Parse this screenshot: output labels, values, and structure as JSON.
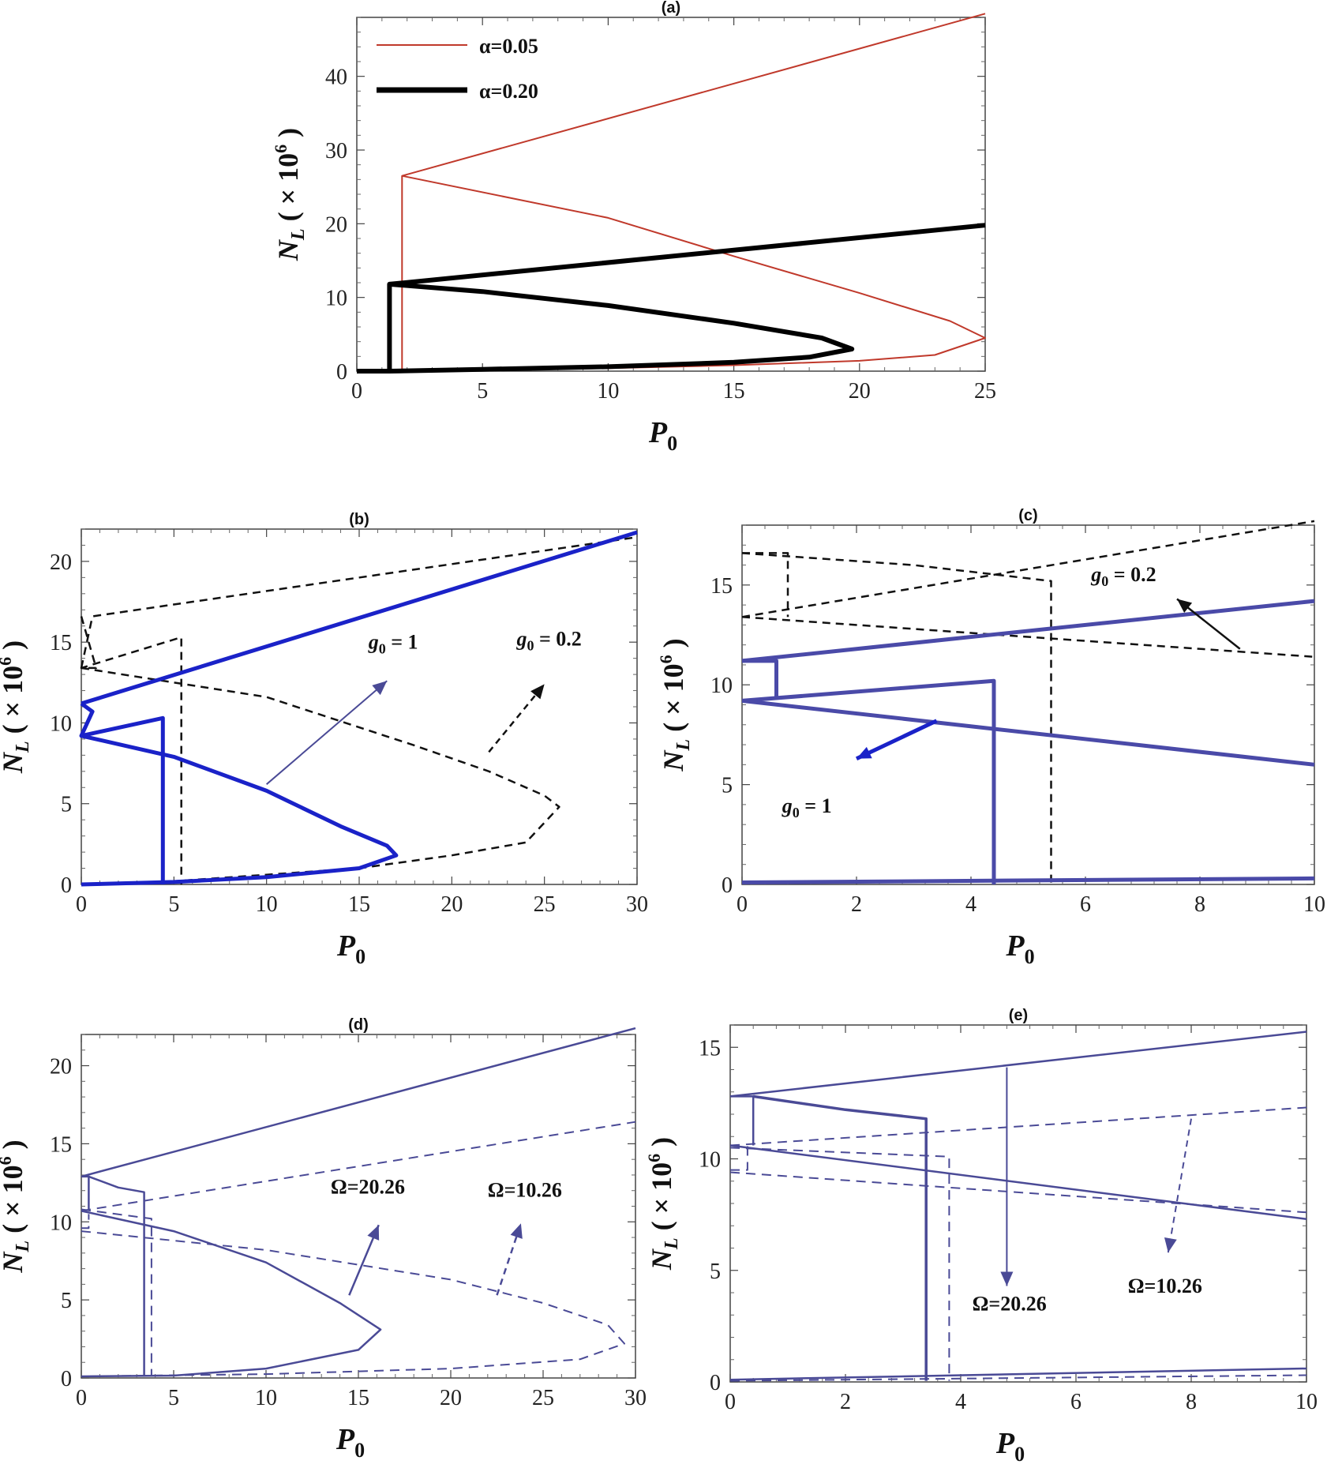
{
  "figure_labels": {
    "a": "(a)",
    "b": "(b)",
    "c": "(c)",
    "d": "(d)",
    "e": "(e)"
  },
  "chart_data": [
    {
      "id": "a",
      "type": "line",
      "title": "(a)",
      "xlabel": "P0",
      "ylabel": "NL ( × 10^6 )",
      "xlim": [
        0,
        25
      ],
      "ylim": [
        0,
        48
      ],
      "xticks": [
        0,
        5,
        10,
        15,
        20,
        25
      ],
      "yticks": [
        0,
        10,
        20,
        30,
        40
      ],
      "legend": {
        "placement": "top-left"
      },
      "series": [
        {
          "name": "α=0.05",
          "color": "#c0392b",
          "style": "thin",
          "points": [
            [
              0,
              0
            ],
            [
              1.8,
              0
            ],
            [
              1.8,
              26.5
            ],
            [
              25,
              48.5
            ]
          ],
          "branch": [
            [
              1.8,
              26.5
            ],
            [
              10,
              20.8
            ],
            [
              15,
              15.6
            ],
            [
              20,
              10.6
            ],
            [
              23.6,
              6.8
            ],
            [
              25,
              4.5
            ],
            [
              23,
              2.2
            ],
            [
              20,
              1.4
            ],
            [
              15,
              0.8
            ],
            [
              10,
              0.4
            ],
            [
              1.8,
              0
            ]
          ]
        },
        {
          "name": "α=0.20",
          "color": "#000000",
          "style": "thick",
          "points": [
            [
              0,
              0
            ],
            [
              1.3,
              0
            ],
            [
              1.3,
              11.8
            ],
            [
              25,
              19.8
            ]
          ],
          "branch": [
            [
              1.3,
              11.8
            ],
            [
              5,
              10.8
            ],
            [
              10,
              8.9
            ],
            [
              15,
              6.5
            ],
            [
              18.5,
              4.5
            ],
            [
              19.7,
              3
            ],
            [
              18,
              1.9
            ],
            [
              15,
              1.2
            ],
            [
              10,
              0.6
            ],
            [
              5,
              0.25
            ],
            [
              1.3,
              0
            ]
          ]
        }
      ]
    },
    {
      "id": "b",
      "type": "line",
      "title": "(b)",
      "xlabel": "P0",
      "ylabel": "NL ( × 10^6 )",
      "xlim": [
        0,
        30
      ],
      "ylim": [
        0,
        22
      ],
      "xticks": [
        0,
        5,
        10,
        15,
        20,
        25,
        30
      ],
      "yticks": [
        0,
        5,
        10,
        15,
        20
      ],
      "annotations": [
        "g0 = 1",
        "g0 = 0.2"
      ],
      "series": [
        {
          "name": "g0 = 1",
          "color": "#1a22c8",
          "style": "thick",
          "upper": [
            [
              0,
              11.2
            ],
            [
              30,
              21.8
            ]
          ],
          "loop": [
            [
              0,
              11.2
            ],
            [
              0.6,
              10.7
            ],
            [
              0,
              9.2
            ],
            [
              4.4,
              10.3
            ],
            [
              4.4,
              0
            ]
          ],
          "lower": [
            [
              0,
              9.2
            ],
            [
              5,
              7.9
            ],
            [
              10,
              5.8
            ],
            [
              14,
              3.6
            ],
            [
              16.5,
              2.4
            ],
            [
              17,
              1.8
            ],
            [
              15,
              1
            ],
            [
              10,
              0.45
            ],
            [
              5,
              0.15
            ],
            [
              0,
              0
            ]
          ]
        },
        {
          "name": "g0 = 0.2",
          "color": "#111111",
          "style": "dashed",
          "upper": [
            [
              0,
              13.4
            ],
            [
              0.6,
              16.6
            ],
            [
              30,
              21.5
            ]
          ],
          "loop": [
            [
              0,
              16.6
            ],
            [
              0.8,
              13.4
            ],
            [
              0,
              13.4
            ],
            [
              5.4,
              15.3
            ],
            [
              5.4,
              0
            ]
          ],
          "lower": [
            [
              0,
              13.4
            ],
            [
              10,
              11.6
            ],
            [
              18,
              8.6
            ],
            [
              22,
              7
            ],
            [
              25,
              5.5
            ],
            [
              25.8,
              4.8
            ],
            [
              24,
              2.6
            ],
            [
              20,
              1.8
            ],
            [
              15,
              1
            ],
            [
              10,
              0.6
            ],
            [
              5,
              0.2
            ],
            [
              0,
              0
            ]
          ]
        }
      ]
    },
    {
      "id": "c",
      "type": "line",
      "title": "(c)",
      "xlabel": "P0",
      "ylabel": "NL ( × 10^6 )",
      "xlim": [
        0,
        10
      ],
      "ylim": [
        0,
        18
      ],
      "xticks": [
        0,
        2,
        4,
        6,
        8,
        10
      ],
      "yticks": [
        0,
        5,
        10,
        15
      ],
      "annotations": [
        "g0 = 0.2",
        "g0 = 1"
      ],
      "series": [
        {
          "name": "g0 = 1",
          "color": "#4a4aa8",
          "style": "thick"
        },
        {
          "name": "g0 = 0.2",
          "color": "#111111",
          "style": "dashed"
        }
      ]
    },
    {
      "id": "d",
      "type": "line",
      "title": "(d)",
      "xlabel": "P0",
      "ylabel": "NL ( × 10^6 )",
      "xlim": [
        0,
        30
      ],
      "ylim": [
        0,
        22
      ],
      "xticks": [
        0,
        5,
        10,
        15,
        20,
        25,
        30
      ],
      "yticks": [
        0,
        5,
        10,
        15,
        20
      ],
      "annotations": [
        "Ω=20.26",
        "Ω=10.26"
      ],
      "series": [
        {
          "name": "Ω=20.26",
          "color": "#4a4a96",
          "style": "solid"
        },
        {
          "name": "Ω=10.26",
          "color": "#4a4a96",
          "style": "dashed"
        }
      ]
    },
    {
      "id": "e",
      "type": "line",
      "title": "(e)",
      "xlabel": "P0",
      "ylabel": "NL ( × 10^6 )",
      "xlim": [
        0,
        10
      ],
      "ylim": [
        0,
        16
      ],
      "xticks": [
        0,
        2,
        4,
        6,
        8,
        10
      ],
      "yticks": [
        0,
        5,
        10,
        15
      ],
      "annotations": [
        "Ω=20.26",
        "Ω=10.26"
      ],
      "series": [
        {
          "name": "Ω=20.26",
          "color": "#4a4a96",
          "style": "solid"
        },
        {
          "name": "Ω=10.26",
          "color": "#4a4a96",
          "style": "dashed"
        }
      ]
    }
  ]
}
